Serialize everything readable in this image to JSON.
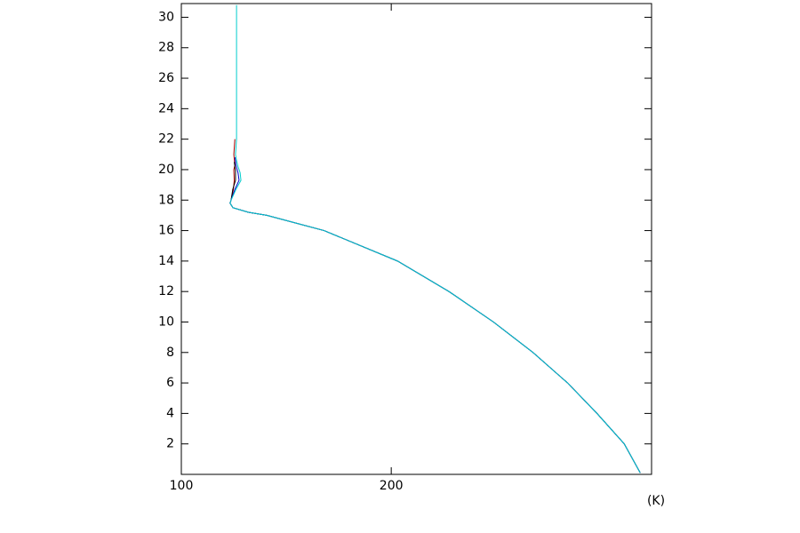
{
  "chart_data": {
    "type": "line",
    "x_label": "(K)",
    "xlim": [
      100,
      324
    ],
    "ylim": [
      0,
      30.9
    ],
    "xticks": [
      100,
      200
    ],
    "yticks": [
      2,
      4,
      6,
      8,
      10,
      12,
      14,
      16,
      18,
      20,
      22,
      24,
      26,
      28,
      30
    ],
    "series": [
      {
        "color": "#aa0000",
        "x": [
          318.6,
          311,
          298,
          284,
          267.5,
          248.7,
          227.5,
          203,
          168,
          140.7,
          132,
          124.6,
          123.2,
          123.7,
          124.8,
          125.2,
          125,
          125.5,
          125,
          125.5
        ],
        "y": [
          0.1,
          2,
          4,
          6,
          8,
          10,
          12,
          14,
          16,
          17,
          17.2,
          17.5,
          17.8,
          18,
          18.7,
          19.3,
          20,
          20.3,
          21,
          22
        ]
      },
      {
        "color": "#000000",
        "x": [
          318.6,
          311,
          298,
          284,
          267.5,
          248.7,
          227.5,
          203,
          168,
          140.7,
          132,
          124.6,
          123.2,
          123.7,
          124.5,
          125.8,
          125.8,
          125.2
        ],
        "y": [
          0.1,
          2,
          4,
          6,
          8,
          10,
          12,
          14,
          16,
          17,
          17.2,
          17.5,
          17.8,
          18,
          18.7,
          19.3,
          19.9,
          20.5
        ]
      },
      {
        "color": "#0000cc",
        "x": [
          318.6,
          311,
          298,
          284,
          267.5,
          248.7,
          227.5,
          203,
          168,
          140.7,
          132,
          124.6,
          123.2,
          123.7,
          125.5,
          127.5,
          127,
          126,
          125.6
        ],
        "y": [
          0.1,
          2,
          4,
          6,
          8,
          10,
          12,
          14,
          16,
          17,
          17.2,
          17.5,
          17.8,
          18,
          18.7,
          19.3,
          19.8,
          20.3,
          20.8
        ]
      },
      {
        "color": "#00cccc",
        "x": [
          318.6,
          311,
          298,
          284,
          267.5,
          248.7,
          227.5,
          203,
          168,
          140.7,
          132,
          124.6,
          123.2,
          123.7,
          126,
          128.4,
          128,
          127,
          126.3,
          125.8,
          126.3,
          126.3
        ],
        "y": [
          0.1,
          2,
          4,
          6,
          8,
          10,
          12,
          14,
          16,
          17,
          17.2,
          17.5,
          17.8,
          18,
          18.7,
          19.3,
          19.8,
          20.2,
          20.6,
          21,
          22,
          30.8
        ]
      }
    ]
  }
}
